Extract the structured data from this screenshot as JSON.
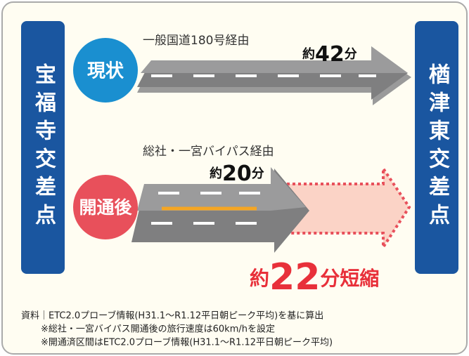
{
  "left_point": "宝福寺交差点",
  "right_point": "楢津東交差点",
  "current": {
    "badge": "現状",
    "route": "一般国道180号経由",
    "time_prefix": "約",
    "time_number": "42",
    "time_suffix": "分"
  },
  "after": {
    "badge": "開通後",
    "route": "総社・一宮バイパス経由",
    "time_prefix": "約",
    "time_number": "20",
    "time_suffix": "分"
  },
  "saving": {
    "prefix": "約",
    "number": "22",
    "suffix": "分短縮"
  },
  "notes": [
    "資料｜ETC2.0プローブ情報(H31.1～R1.12平日朝ピーク平均)を基に算出",
    "※総社・一宮バイパス開通後の旅行速度は60km/hを設定",
    "※開通済区間はETC2.0プローブ情報(H31.1～R1.12平日朝ピーク平均)"
  ]
}
